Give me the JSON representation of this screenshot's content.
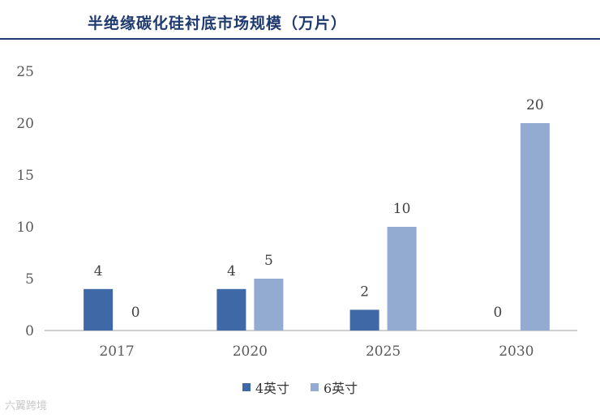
{
  "header": {
    "title": "半绝缘碳化硅衬底市场规模（万片）"
  },
  "watermark": "六翼跨境",
  "colors": {
    "series_4in": "#3f68a6",
    "series_6in": "#93aad1",
    "title": "#1f3a6e",
    "axis": "#bfbfbf",
    "text": "#595959"
  },
  "chart_data": {
    "type": "bar",
    "title": "半绝缘碳化硅衬底市场规模（万片）",
    "categories": [
      "2017",
      "2020",
      "2025",
      "2030"
    ],
    "series": [
      {
        "name": "4英寸",
        "values": [
          4,
          4,
          2,
          0
        ]
      },
      {
        "name": "6英寸",
        "values": [
          0,
          5,
          10,
          20
        ]
      }
    ],
    "ylim": [
      0,
      25
    ],
    "yticks": [
      "0",
      "5",
      "10",
      "15",
      "20",
      "25"
    ],
    "grid": false,
    "legend": "bottom",
    "data_labels": true
  }
}
